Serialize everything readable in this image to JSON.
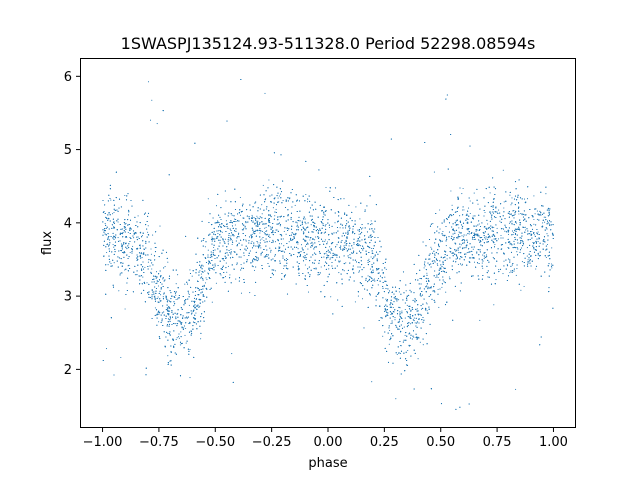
{
  "chart_data": {
    "type": "scatter",
    "title": "1SWASPJ135124.93-511328.0 Period 52298.08594s",
    "xlabel": "phase",
    "ylabel": "flux",
    "xlim": [
      -1.1,
      1.1
    ],
    "ylim": [
      1.2,
      6.25
    ],
    "xticks": [
      -1.0,
      -0.75,
      -0.5,
      -0.25,
      0.0,
      0.25,
      0.5,
      0.75,
      1.0
    ],
    "xtick_labels": [
      "−1.00",
      "−0.75",
      "−0.50",
      "−0.25",
      "0.00",
      "0.25",
      "0.50",
      "0.75",
      "1.00"
    ],
    "yticks": [
      2,
      3,
      4,
      5,
      6
    ],
    "ytick_labels": [
      "2",
      "3",
      "4",
      "5",
      "6"
    ],
    "grid": false,
    "marker_color": "#1f77b4",
    "series": [
      {
        "phase_range": [
          -1.0,
          1.0
        ],
        "baseline_flux": 3.8,
        "scatter_sigma": 0.3,
        "eclipse_dips": [
          {
            "phase": -0.68,
            "min_flux": 2.65
          },
          {
            "phase": 0.32,
            "min_flux": 2.65
          }
        ],
        "eclipse_half_width": 0.13,
        "outlier_range": [
          1.4,
          6.0
        ],
        "profile": {
          "phase": [
            -1.0,
            -0.9,
            -0.8,
            -0.75,
            -0.7,
            -0.68,
            -0.6,
            -0.55,
            -0.5,
            -0.4,
            -0.25,
            0.0,
            0.2,
            0.25,
            0.3,
            0.32,
            0.4,
            0.45,
            0.5,
            0.6,
            0.75,
            1.0
          ],
          "flux": [
            3.8,
            3.8,
            3.5,
            3.05,
            2.7,
            2.65,
            2.8,
            3.3,
            3.65,
            3.8,
            3.85,
            3.75,
            3.55,
            3.05,
            2.7,
            2.65,
            2.75,
            3.25,
            3.6,
            3.8,
            3.85,
            3.8
          ]
        }
      }
    ]
  }
}
